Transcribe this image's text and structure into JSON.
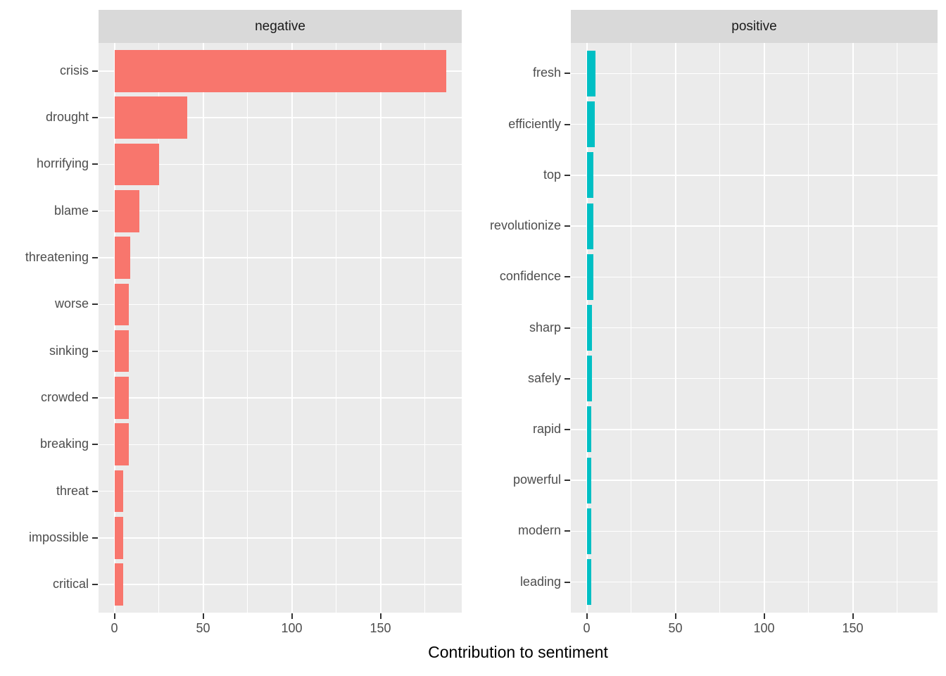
{
  "chart_data": {
    "type": "bar",
    "orientation": "horizontal",
    "title": "",
    "xlabel": "Contribution to sentiment",
    "ylabel": "",
    "x_ticks": [
      0,
      50,
      100,
      150
    ],
    "x_minor_gridlines": [
      25,
      75,
      125,
      175
    ],
    "xlim": [
      -9,
      196
    ],
    "grid": true,
    "legend": "none",
    "facets": [
      {
        "label": "negative",
        "bar_color": "#F8766D",
        "categories": [
          "crisis",
          "drought",
          "horrifying",
          "blame",
          "threatening",
          "worse",
          "sinking",
          "crowded",
          "breaking",
          "threat",
          "impossible",
          "critical"
        ],
        "values": [
          187,
          41,
          25,
          14,
          9,
          8,
          8,
          8,
          8,
          5,
          5,
          5
        ]
      },
      {
        "label": "positive",
        "bar_color": "#00BFC4",
        "categories": [
          "fresh",
          "efficiently",
          "top",
          "revolutionize",
          "confidence",
          "sharp",
          "safely",
          "rapid",
          "powerful",
          "modern",
          "leading"
        ],
        "values": [
          5,
          4.7,
          3.8,
          3.8,
          3.7,
          2.9,
          2.8,
          2.7,
          2.7,
          2.7,
          2.6
        ]
      }
    ],
    "colors": {
      "panel_background": "#EBEBEB",
      "strip_background": "#D9D9D9",
      "gridline": "#FFFFFF",
      "axis_text": "#4D4D4D",
      "tick_mark": "#333333",
      "strip_text": "#1A1A1A",
      "axis_title": "#000000",
      "page_background": "#FFFFFF"
    }
  }
}
